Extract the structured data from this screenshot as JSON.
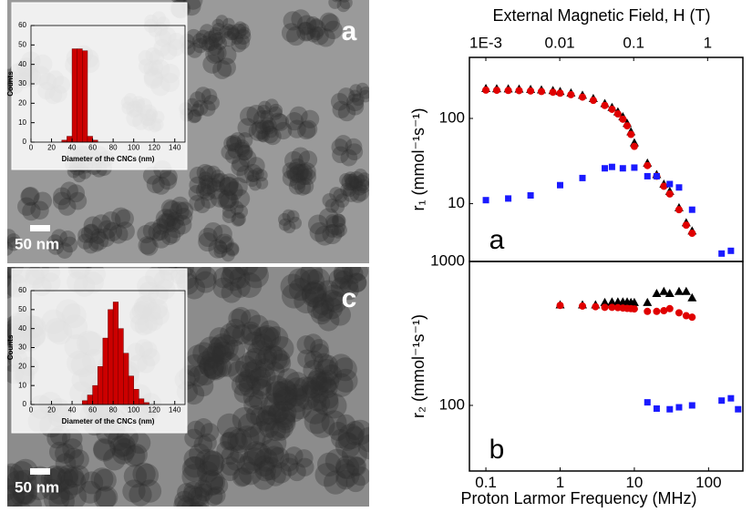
{
  "panels": [
    {
      "label": "a",
      "scale_bar": "50 nm"
    },
    {
      "label": "c",
      "scale_bar": "50 nm"
    }
  ],
  "chart_data": [
    {
      "type": "histogram",
      "xlabel": "Diameter of the CNCs (nm)",
      "ylabel": "Counts",
      "color": "#cc0000",
      "bins": [
        30,
        35,
        40,
        45,
        50,
        55,
        60,
        65
      ],
      "counts": [
        1,
        3,
        48,
        48,
        47,
        3,
        1
      ],
      "xlim": [
        0,
        150
      ],
      "ylim": [
        0,
        60
      ],
      "xticks": [
        0,
        20,
        40,
        60,
        80,
        100,
        120,
        140
      ],
      "yticks": [
        0,
        10,
        20,
        30,
        40,
        50,
        60
      ]
    },
    {
      "type": "histogram",
      "xlabel": "Diameter of the CNCs (nm)",
      "ylabel": "Counts",
      "color": "#cc0000",
      "bins": [
        50,
        55,
        60,
        65,
        70,
        75,
        80,
        85,
        90,
        95,
        100,
        105,
        110,
        115
      ],
      "counts": [
        2,
        5,
        10,
        20,
        35,
        50,
        54,
        40,
        27,
        15,
        8,
        3,
        1
      ],
      "xlim": [
        0,
        150
      ],
      "ylim": [
        0,
        60
      ],
      "xticks": [
        0,
        20,
        40,
        60,
        80,
        100,
        120,
        140
      ],
      "yticks": [
        0,
        10,
        20,
        30,
        40,
        50,
        60
      ]
    },
    {
      "type": "scatter",
      "log_x": true,
      "log_y": true,
      "ylabel": "r₁ (mmol⁻¹s⁻¹)",
      "panel_label": "a",
      "x2label": "External Magnetic Field, H (T)",
      "x2lim": [
        0.0006,
        3.0
      ],
      "x2ticks": [
        {
          "value": 0.001,
          "label": "1E-3"
        },
        0.01,
        0.1,
        1
      ],
      "xlim": [
        0.06,
        290
      ],
      "ylim": [
        2.1,
        520
      ],
      "yticks": [
        10,
        100
      ],
      "series": [
        {
          "color": "#000000",
          "marker": "triangle",
          "x": [
            0.1,
            0.14,
            0.2,
            0.28,
            0.4,
            0.56,
            0.8,
            1,
            1.4,
            2,
            2.8,
            4,
            5,
            6,
            7,
            8,
            9,
            10,
            15,
            20,
            25,
            30,
            40,
            50,
            60
          ],
          "values": [
            225,
            224,
            223,
            222,
            220,
            217,
            213,
            208,
            200,
            188,
            172,
            150,
            135,
            120,
            105,
            88,
            70,
            52,
            30,
            22,
            17,
            14,
            9,
            6,
            4.8
          ]
        },
        {
          "color": "#e00000",
          "marker": "circle",
          "x": [
            0.1,
            0.14,
            0.2,
            0.28,
            0.4,
            0.56,
            0.8,
            1,
            1.4,
            2,
            2.8,
            4,
            5,
            6,
            7,
            8,
            9,
            10,
            15,
            20,
            25,
            30,
            40,
            50,
            60
          ],
          "values": [
            215,
            214,
            213,
            212,
            210,
            207,
            203,
            198,
            190,
            178,
            163,
            142,
            128,
            113,
            98,
            82,
            65,
            47,
            28,
            21,
            16,
            13,
            8.5,
            5.6,
            4.5
          ]
        },
        {
          "color": "#1a1aff",
          "marker": "square",
          "x": [
            0.1,
            0.2,
            0.4,
            1,
            2,
            4,
            5,
            7,
            10,
            15,
            20,
            30,
            40,
            60,
            150,
            200
          ],
          "values": [
            11,
            11.5,
            12.5,
            16.5,
            20,
            26,
            27,
            26,
            26.5,
            21,
            21,
            17,
            15.5,
            8.5,
            2.6,
            2.8
          ]
        }
      ]
    },
    {
      "type": "scatter",
      "log_x": true,
      "log_y": true,
      "ylabel": "r₂ (mmol⁻¹s⁻¹)",
      "panel_label": "b",
      "xlabel": "Proton Larmor Frequency (MHz)",
      "xlim": [
        0.06,
        290
      ],
      "ylim": [
        35,
        1000
      ],
      "xticks": [
        0.1,
        1,
        10,
        100
      ],
      "yticks": [
        100,
        1000
      ],
      "series": [
        {
          "color": "#000000",
          "marker": "triangle",
          "x": [
            1,
            2,
            3,
            4,
            5,
            6,
            7,
            8,
            9,
            10,
            15,
            20,
            25,
            30,
            40,
            50,
            60
          ],
          "values": [
            500,
            500,
            500,
            520,
            525,
            525,
            525,
            525,
            520,
            520,
            520,
            600,
            620,
            600,
            620,
            620,
            560
          ]
        },
        {
          "color": "#e00000",
          "marker": "circle",
          "x": [
            1,
            2,
            3,
            4,
            5,
            6,
            7,
            8,
            9,
            10,
            15,
            20,
            25,
            30,
            40,
            50,
            60
          ],
          "values": [
            495,
            490,
            485,
            480,
            480,
            478,
            475,
            472,
            470,
            468,
            450,
            450,
            455,
            470,
            440,
            420,
            410
          ]
        },
        {
          "color": "#1a1aff",
          "marker": "square",
          "x": [
            15,
            20,
            30,
            40,
            60,
            150,
            200,
            250
          ],
          "values": [
            105,
            95,
            94,
            97,
            100,
            108,
            112,
            94
          ]
        }
      ]
    }
  ]
}
